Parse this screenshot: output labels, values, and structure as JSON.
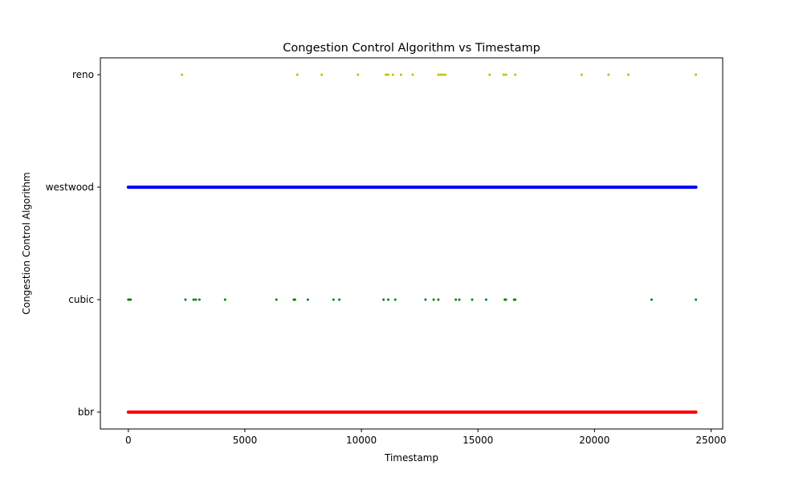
{
  "chart_data": {
    "type": "scatter",
    "title": "Congestion Control Algorithm vs Timestamp",
    "xlabel": "Timestamp",
    "ylabel": "Congestion Control Algorithm",
    "xlim": [
      -1200,
      25500
    ],
    "x_ticks": [
      0,
      5000,
      10000,
      15000,
      20000,
      25000
    ],
    "x_tick_labels": [
      "0",
      "5000",
      "10000",
      "15000",
      "20000",
      "25000"
    ],
    "categories": [
      "bbr",
      "cubic",
      "westwood",
      "reno"
    ],
    "grid": false,
    "legend": "none",
    "series": [
      {
        "category": "bbr",
        "color": "#ff0000",
        "dense": true,
        "x_range": [
          0,
          24350
        ]
      },
      {
        "category": "cubic",
        "color": "#008000",
        "dense": false,
        "x": [
          0,
          50,
          100,
          2450,
          2800,
          2900,
          3050,
          4150,
          6350,
          7100,
          7150,
          7700,
          8800,
          9050,
          10950,
          11150,
          11450,
          12750,
          13100,
          13300,
          14050,
          14200,
          14750,
          15350,
          16150,
          16200,
          16550,
          16600,
          22450,
          24350
        ]
      },
      {
        "category": "westwood",
        "color": "#0000ff",
        "dense": true,
        "x_range": [
          0,
          24350
        ]
      },
      {
        "category": "reno",
        "color": "#bfbf00",
        "dense": false,
        "x": [
          2300,
          7250,
          8300,
          9850,
          11050,
          11150,
          11350,
          11700,
          12200,
          13300,
          13400,
          13500,
          13600,
          15500,
          16100,
          16200,
          16600,
          19450,
          20600,
          21450,
          24350
        ]
      }
    ]
  }
}
